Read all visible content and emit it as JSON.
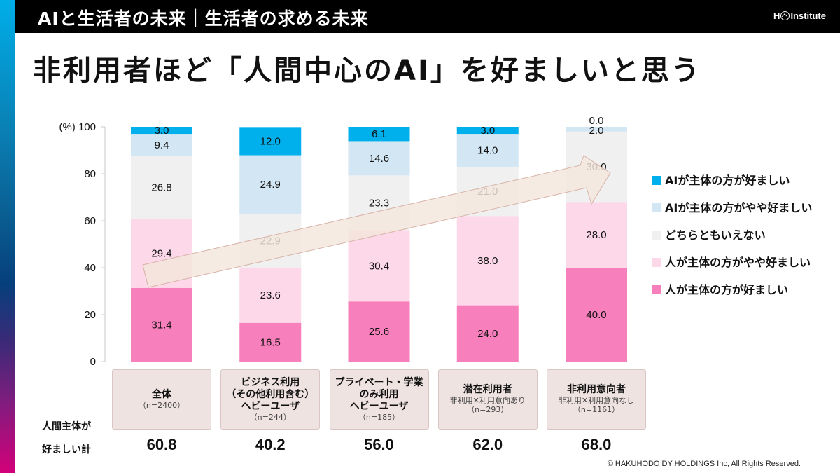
{
  "header": {
    "title": "AIと生活者の未来｜生活者の求める未来",
    "logo_prefix": "H",
    "logo_suffix": "Institute"
  },
  "page_title": "非利用者ほど「人間中心のAI」を好ましいと思う",
  "colors": {
    "ai_prefer": "#00b0ec",
    "ai_somewhat": "#d3e6f3",
    "neutral": "#f0f0f0",
    "human_somewhat": "#fcd8e8",
    "human_prefer": "#f77fbb",
    "arrow_fill": "#f3e7dc",
    "arrow_stroke": "#d7b3a8",
    "category_box": "#efe3e2"
  },
  "chart_data": {
    "type": "bar",
    "stacked": true,
    "title": "非利用者ほど「人間中心のAI」を好ましいと思う",
    "ylabel": "(%)",
    "ylim": [
      0,
      100
    ],
    "yticks": [
      0,
      20,
      40,
      60,
      80,
      100
    ],
    "ytick_labels": [
      "0",
      "20",
      "40",
      "60",
      "80",
      "(%) 100"
    ],
    "grid": false,
    "legend_position": "right",
    "categories": [
      {
        "name": "全体",
        "sub": "",
        "n": "（n=2400）"
      },
      {
        "name": "ビジネス利用\n（その他利用含む）\nヘビーユーザ",
        "sub": "",
        "n": "（n=244）"
      },
      {
        "name": "プライベート・学業\nのみ利用\nヘビーユーザ",
        "sub": "",
        "n": "（n=185）"
      },
      {
        "name": "潜在利用者",
        "sub": "非利用✕利用意向あり",
        "n": "（n=293）"
      },
      {
        "name": "非利用意向者",
        "sub": "非利用✕利用意向なし",
        "n": "（n=1161）"
      }
    ],
    "series": [
      {
        "name": "人が主体の方が好ましい",
        "key": "human_prefer",
        "values": [
          31.4,
          16.5,
          25.6,
          24.0,
          40.0
        ]
      },
      {
        "name": "人が主体の方がやや好ましい",
        "key": "human_somewhat",
        "values": [
          29.4,
          23.6,
          30.4,
          38.0,
          28.0
        ]
      },
      {
        "name": "どちらともいえない",
        "key": "neutral",
        "values": [
          26.8,
          22.9,
          23.3,
          21.0,
          30.0
        ]
      },
      {
        "name": "AIが主体の方がやや好ましい",
        "key": "ai_somewhat",
        "values": [
          9.4,
          24.9,
          14.6,
          14.0,
          2.0
        ]
      },
      {
        "name": "AIが主体の方が好ましい",
        "key": "ai_prefer",
        "values": [
          3.0,
          12.0,
          6.1,
          3.0,
          0.0
        ]
      }
    ],
    "legend_order": [
      "AIが主体の方が好ましい",
      "AIが主体の方がやや好ましい",
      "どちらともいえない",
      "人が主体の方がやや好ましい",
      "人が主体の方が好ましい"
    ],
    "annotation": "upward trend arrow from 全体 to 非利用意向者",
    "summary_row": {
      "label_line1": "人間主体が",
      "label_line2": "好ましい計",
      "values": [
        "60.8",
        "40.2",
        "56.0",
        "62.0",
        "68.0"
      ]
    }
  },
  "footer": {
    "copyright": "© HAKUHODO DY HOLDINGS  Inc, All  Rights  Reserved."
  }
}
